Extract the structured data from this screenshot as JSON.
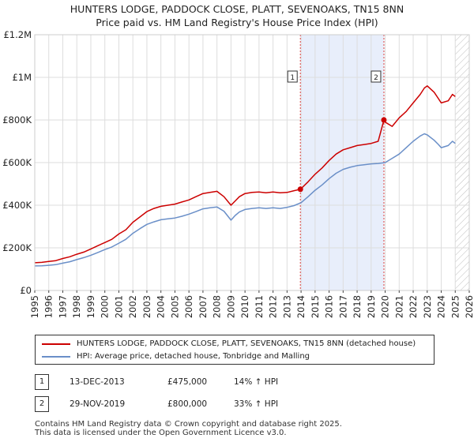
{
  "title": {
    "line1": "HUNTERS LODGE, PADDOCK CLOSE, PLATT, SEVENOAKS, TN15 8NN",
    "line2": "Price paid vs. HM Land Registry's House Price Index (HPI)"
  },
  "chart_data": {
    "type": "line",
    "title": "Price paid vs. HM Land Registry's House Price Index (HPI)",
    "xlabel": "",
    "ylabel": "",
    "xlim": [
      1995,
      2026
    ],
    "ylim": [
      0,
      1200000
    ],
    "y_ticks": [
      {
        "value": 0,
        "label": "£0"
      },
      {
        "value": 200000,
        "label": "£200K"
      },
      {
        "value": 400000,
        "label": "£400K"
      },
      {
        "value": 600000,
        "label": "£600K"
      },
      {
        "value": 800000,
        "label": "£800K"
      },
      {
        "value": 1000000,
        "label": "£1M"
      },
      {
        "value": 1200000,
        "label": "£1.2M"
      }
    ],
    "x_ticks": [
      "1995",
      "1996",
      "1997",
      "1998",
      "1999",
      "2000",
      "2001",
      "2002",
      "2003",
      "2004",
      "2005",
      "2006",
      "2007",
      "2008",
      "2009",
      "2010",
      "2011",
      "2012",
      "2013",
      "2014",
      "2015",
      "2016",
      "2017",
      "2018",
      "2019",
      "2020",
      "2021",
      "2022",
      "2023",
      "2024",
      "2025",
      "2026"
    ],
    "grid": true,
    "shaded_span": [
      2013.95,
      2019.91
    ],
    "hatched_from": 2025.0,
    "series": [
      {
        "name": "HUNTERS LODGE, PADDOCK CLOSE, PLATT, SEVENOAKS, TN15 8NN (detached house)",
        "color": "#cc0000",
        "x": [
          1995.0,
          1995.5,
          1996.0,
          1996.5,
          1997.0,
          1997.5,
          1998.0,
          1998.5,
          1999.0,
          1999.5,
          2000.0,
          2000.5,
          2001.0,
          2001.5,
          2002.0,
          2002.5,
          2003.0,
          2003.5,
          2004.0,
          2004.5,
          2005.0,
          2005.5,
          2006.0,
          2006.5,
          2007.0,
          2007.5,
          2008.0,
          2008.5,
          2009.0,
          2009.3,
          2009.6,
          2010.0,
          2010.5,
          2011.0,
          2011.5,
          2012.0,
          2012.5,
          2013.0,
          2013.5,
          2013.95,
          2014.5,
          2015.0,
          2015.5,
          2016.0,
          2016.5,
          2017.0,
          2017.5,
          2018.0,
          2018.5,
          2019.0,
          2019.5,
          2019.91,
          2020.0,
          2020.5,
          2021.0,
          2021.5,
          2022.0,
          2022.5,
          2022.8,
          2023.0,
          2023.5,
          2023.8,
          2024.0,
          2024.5,
          2024.8,
          2025.0
        ],
        "values": [
          130000,
          132000,
          136000,
          140000,
          150000,
          158000,
          170000,
          180000,
          195000,
          210000,
          225000,
          240000,
          265000,
          285000,
          320000,
          345000,
          370000,
          385000,
          395000,
          400000,
          405000,
          415000,
          425000,
          440000,
          455000,
          460000,
          465000,
          440000,
          400000,
          420000,
          440000,
          455000,
          460000,
          462000,
          458000,
          462000,
          458000,
          460000,
          468000,
          475000,
          510000,
          545000,
          575000,
          610000,
          640000,
          660000,
          670000,
          680000,
          685000,
          690000,
          700000,
          800000,
          790000,
          770000,
          810000,
          840000,
          880000,
          920000,
          950000,
          960000,
          930000,
          900000,
          880000,
          890000,
          920000,
          910000
        ]
      },
      {
        "name": "HPI: Average price, detached house, Tonbridge and Malling",
        "color": "#6a8fc8",
        "x": [
          1995.0,
          1995.5,
          1996.0,
          1996.5,
          1997.0,
          1997.5,
          1998.0,
          1998.5,
          1999.0,
          1999.5,
          2000.0,
          2000.5,
          2001.0,
          2001.5,
          2002.0,
          2002.5,
          2003.0,
          2003.5,
          2004.0,
          2004.5,
          2005.0,
          2005.5,
          2006.0,
          2006.5,
          2007.0,
          2007.5,
          2008.0,
          2008.5,
          2009.0,
          2009.3,
          2009.6,
          2010.0,
          2010.5,
          2011.0,
          2011.5,
          2012.0,
          2012.5,
          2013.0,
          2013.5,
          2014.0,
          2014.5,
          2015.0,
          2015.5,
          2016.0,
          2016.5,
          2017.0,
          2017.5,
          2018.0,
          2018.5,
          2019.0,
          2019.5,
          2020.0,
          2020.5,
          2021.0,
          2021.5,
          2022.0,
          2022.5,
          2022.8,
          2023.0,
          2023.5,
          2023.8,
          2024.0,
          2024.5,
          2024.8,
          2025.0
        ],
        "values": [
          115000,
          116000,
          118000,
          121000,
          128000,
          135000,
          145000,
          154000,
          165000,
          178000,
          192000,
          204000,
          222000,
          240000,
          268000,
          290000,
          310000,
          322000,
          332000,
          336000,
          340000,
          348000,
          358000,
          370000,
          383000,
          388000,
          392000,
          372000,
          330000,
          352000,
          368000,
          380000,
          385000,
          388000,
          385000,
          388000,
          385000,
          390000,
          398000,
          412000,
          440000,
          470000,
          495000,
          525000,
          550000,
          568000,
          578000,
          586000,
          590000,
          594000,
          596000,
          600000,
          620000,
          640000,
          670000,
          700000,
          725000,
          735000,
          730000,
          705000,
          685000,
          670000,
          680000,
          700000,
          690000
        ]
      }
    ],
    "sales": [
      {
        "num": "1",
        "x": 2013.95,
        "value": 475000,
        "date": "13-DEC-2013",
        "price": "£475,000",
        "hpi": "14% ↑ HPI"
      },
      {
        "num": "2",
        "x": 2019.91,
        "value": 800000,
        "date": "29-NOV-2019",
        "price": "£800,000",
        "hpi": "33% ↑ HPI"
      }
    ]
  },
  "legend": {
    "items": [
      {
        "label": "HUNTERS LODGE, PADDOCK CLOSE, PLATT, SEVENOAKS, TN15 8NN (detached house)",
        "color": "#cc0000"
      },
      {
        "label": "HPI: Average price, detached house, Tonbridge and Malling",
        "color": "#6a8fc8"
      }
    ]
  },
  "footer": {
    "line1": "Contains HM Land Registry data © Crown copyright and database right 2025.",
    "line2": "This data is licensed under the Open Government Licence v3.0."
  }
}
